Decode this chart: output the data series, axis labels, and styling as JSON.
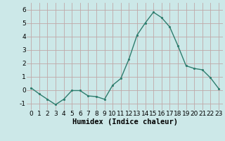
{
  "x": [
    0,
    1,
    2,
    3,
    4,
    5,
    6,
    7,
    8,
    9,
    10,
    11,
    12,
    13,
    14,
    15,
    16,
    17,
    18,
    19,
    20,
    21,
    22,
    23
  ],
  "y": [
    0.15,
    -0.3,
    -0.7,
    -1.1,
    -0.7,
    -0.05,
    -0.05,
    -0.45,
    -0.5,
    -0.7,
    0.35,
    0.85,
    2.3,
    4.1,
    5.0,
    5.8,
    5.4,
    4.7,
    3.3,
    1.8,
    1.6,
    1.5,
    0.9,
    0.1
  ],
  "line_color": "#2e7d6e",
  "marker": ".",
  "xlabel": "Humidex (Indice chaleur)",
  "ylim": [
    -1.5,
    6.5
  ],
  "xlim": [
    -0.5,
    23.5
  ],
  "yticks": [
    -1,
    0,
    1,
    2,
    3,
    4,
    5,
    6
  ],
  "xticks": [
    0,
    1,
    2,
    3,
    4,
    5,
    6,
    7,
    8,
    9,
    10,
    11,
    12,
    13,
    14,
    15,
    16,
    17,
    18,
    19,
    20,
    21,
    22,
    23
  ],
  "bg_color": "#cce8e8",
  "grid_color": "#c0a8a8",
  "xlabel_fontsize": 7.5,
  "tick_fontsize": 6.5
}
